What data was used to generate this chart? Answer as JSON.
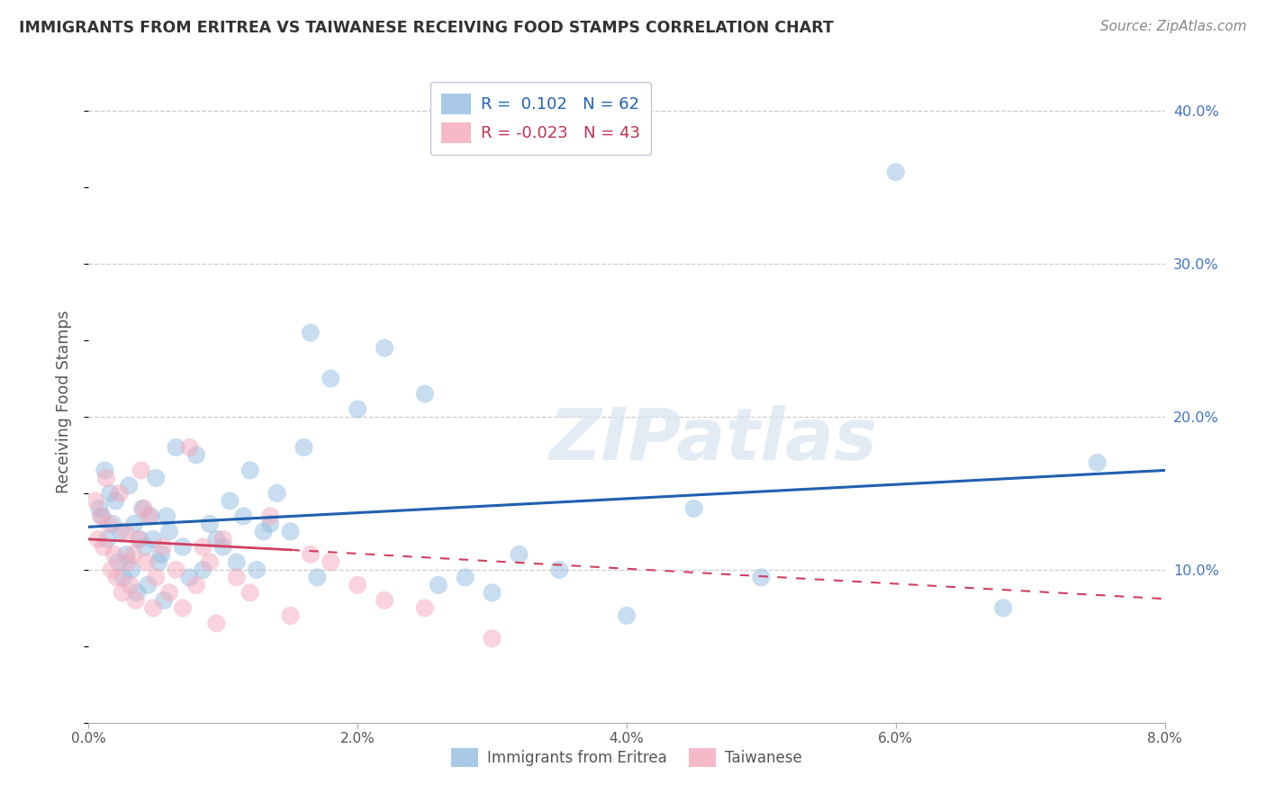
{
  "title": "IMMIGRANTS FROM ERITREA VS TAIWANESE RECEIVING FOOD STAMPS CORRELATION CHART",
  "source": "Source: ZipAtlas.com",
  "ylabel": "Receiving Food Stamps",
  "xmin": 0.0,
  "xmax": 8.0,
  "ymin": 0.0,
  "ymax": 42.0,
  "yticks": [
    10.0,
    20.0,
    30.0,
    40.0
  ],
  "ytick_labels": [
    "10.0%",
    "20.0%",
    "30.0%",
    "40.0%"
  ],
  "xticks": [
    0.0,
    2.0,
    4.0,
    6.0,
    8.0
  ],
  "xtick_labels": [
    "0.0%",
    "2.0%",
    "4.0%",
    "6.0%",
    "8.0%"
  ],
  "legend_line1": "R =  0.102   N = 62",
  "legend_line2": "R = -0.023   N = 43",
  "blue_color": "#92bde0",
  "pink_color": "#f4a8bc",
  "trend_blue": "#2060b0",
  "trend_pink": "#d04060",
  "watermark_text": "ZIPatlas",
  "blue_scatter_x": [
    0.08,
    0.1,
    0.12,
    0.14,
    0.16,
    0.18,
    0.2,
    0.22,
    0.24,
    0.26,
    0.28,
    0.3,
    0.32,
    0.34,
    0.36,
    0.38,
    0.4,
    0.42,
    0.44,
    0.46,
    0.48,
    0.5,
    0.52,
    0.54,
    0.56,
    0.58,
    0.6,
    0.65,
    0.7,
    0.75,
    0.8,
    0.85,
    0.9,
    0.95,
    1.0,
    1.05,
    1.1,
    1.15,
    1.2,
    1.25,
    1.3,
    1.35,
    1.4,
    1.5,
    1.6,
    1.65,
    1.7,
    1.8,
    2.0,
    2.2,
    2.5,
    2.6,
    2.8,
    3.0,
    3.2,
    3.5,
    4.0,
    4.5,
    5.0,
    6.0,
    6.8,
    7.5
  ],
  "blue_scatter_y": [
    14.0,
    13.5,
    16.5,
    12.0,
    15.0,
    13.0,
    14.5,
    10.5,
    12.5,
    9.5,
    11.0,
    15.5,
    10.0,
    13.0,
    8.5,
    12.0,
    14.0,
    11.5,
    9.0,
    13.5,
    12.0,
    16.0,
    10.5,
    11.0,
    8.0,
    13.5,
    12.5,
    18.0,
    11.5,
    9.5,
    17.5,
    10.0,
    13.0,
    12.0,
    11.5,
    14.5,
    10.5,
    13.5,
    16.5,
    10.0,
    12.5,
    13.0,
    15.0,
    12.5,
    18.0,
    25.5,
    9.5,
    22.5,
    20.5,
    24.5,
    21.5,
    9.0,
    9.5,
    8.5,
    11.0,
    10.0,
    7.0,
    14.0,
    9.5,
    36.0,
    7.5,
    17.0
  ],
  "pink_scatter_x": [
    0.05,
    0.07,
    0.09,
    0.11,
    0.13,
    0.15,
    0.17,
    0.19,
    0.21,
    0.23,
    0.25,
    0.27,
    0.29,
    0.31,
    0.33,
    0.35,
    0.37,
    0.39,
    0.41,
    0.43,
    0.45,
    0.48,
    0.5,
    0.55,
    0.6,
    0.65,
    0.7,
    0.75,
    0.8,
    0.85,
    0.9,
    0.95,
    1.0,
    1.1,
    1.2,
    1.35,
    1.5,
    1.65,
    1.8,
    2.0,
    2.2,
    2.5,
    3.0
  ],
  "pink_scatter_y": [
    14.5,
    12.0,
    13.5,
    11.5,
    16.0,
    13.0,
    10.0,
    11.0,
    9.5,
    15.0,
    8.5,
    12.5,
    10.5,
    9.0,
    11.0,
    8.0,
    12.0,
    16.5,
    14.0,
    10.5,
    13.5,
    7.5,
    9.5,
    11.5,
    8.5,
    10.0,
    7.5,
    18.0,
    9.0,
    11.5,
    10.5,
    6.5,
    12.0,
    9.5,
    8.5,
    13.5,
    7.0,
    11.0,
    10.5,
    9.0,
    8.0,
    7.5,
    5.5
  ],
  "blue_trend_x0": 0.0,
  "blue_trend_y0": 12.8,
  "blue_trend_x1": 8.0,
  "blue_trend_y1": 16.5,
  "pink_solid_x0": 0.0,
  "pink_solid_y0": 12.0,
  "pink_solid_x1": 1.5,
  "pink_solid_y1": 11.3,
  "pink_dash_x0": 1.5,
  "pink_dash_y0": 11.3,
  "pink_dash_x1": 8.0,
  "pink_dash_y1": 8.1
}
